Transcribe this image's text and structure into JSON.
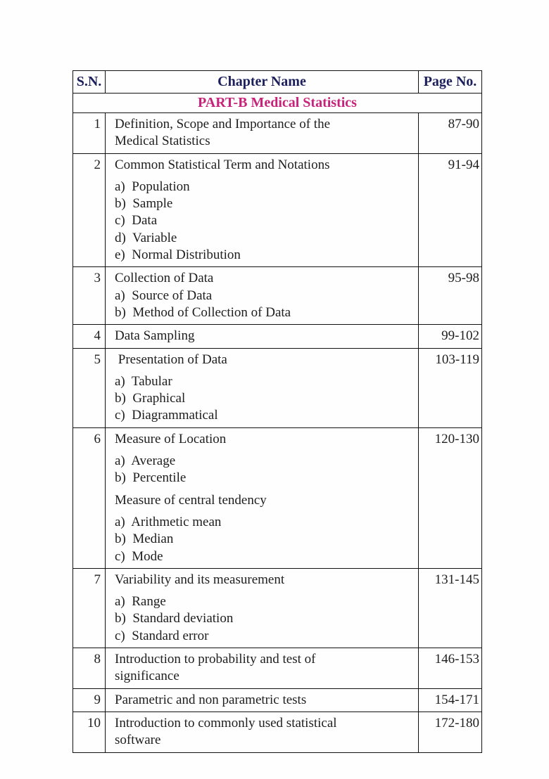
{
  "header": {
    "sn": "S.N.",
    "chapter": "Chapter Name",
    "page": "Page No."
  },
  "part_title": "PART-B Medical Statistics",
  "accent_color": "#c8237a",
  "chapters": [
    {
      "sn": "1",
      "page": "87-90",
      "groups": [
        [
          "Definition, Scope and Importance of the",
          "Medical Statistics"
        ]
      ]
    },
    {
      "sn": "2",
      "page": "91-94",
      "groups": [
        [
          "Common Statistical Term and Notations"
        ],
        [
          "a)  Population",
          "b)  Sample",
          "c)  Data",
          "d)  Variable",
          "e)  Normal Distribution"
        ]
      ]
    },
    {
      "sn": "3",
      "page": "95-98",
      "groups": [
        [
          "Collection of Data",
          "a)  Source of Data",
          "b)  Method of Collection of Data"
        ]
      ]
    },
    {
      "sn": "4",
      "page": "99-102",
      "groups": [
        [
          "Data Sampling"
        ]
      ]
    },
    {
      "sn": "5",
      "page": "103-119",
      "groups": [
        [
          " Presentation of Data"
        ],
        [
          "a)  Tabular",
          "b)  Graphical",
          "c)  Diagrammatical"
        ]
      ]
    },
    {
      "sn": "6",
      "page": "120-130",
      "groups": [
        [
          "Measure of Location"
        ],
        [
          "a)  Average",
          "b)  Percentile"
        ],
        [
          "Measure of central tendency"
        ],
        [
          "a)  Arithmetic mean",
          "b)  Median",
          "c)  Mode"
        ]
      ]
    },
    {
      "sn": "7",
      "page": "131-145",
      "groups": [
        [
          "Variability and its measurement"
        ],
        [
          "a)  Range",
          "b)  Standard deviation",
          "c)  Standard error"
        ]
      ]
    },
    {
      "sn": "8",
      "page": "146-153",
      "groups": [
        [
          "Introduction to probability and test of",
          "significance"
        ]
      ]
    },
    {
      "sn": "9",
      "page": "154-171",
      "groups": [
        [
          "Parametric and non parametric tests"
        ]
      ]
    },
    {
      "sn": "10",
      "page": "172-180",
      "groups": [
        [
          "Introduction to commonly used statistical",
          "software"
        ]
      ]
    }
  ]
}
